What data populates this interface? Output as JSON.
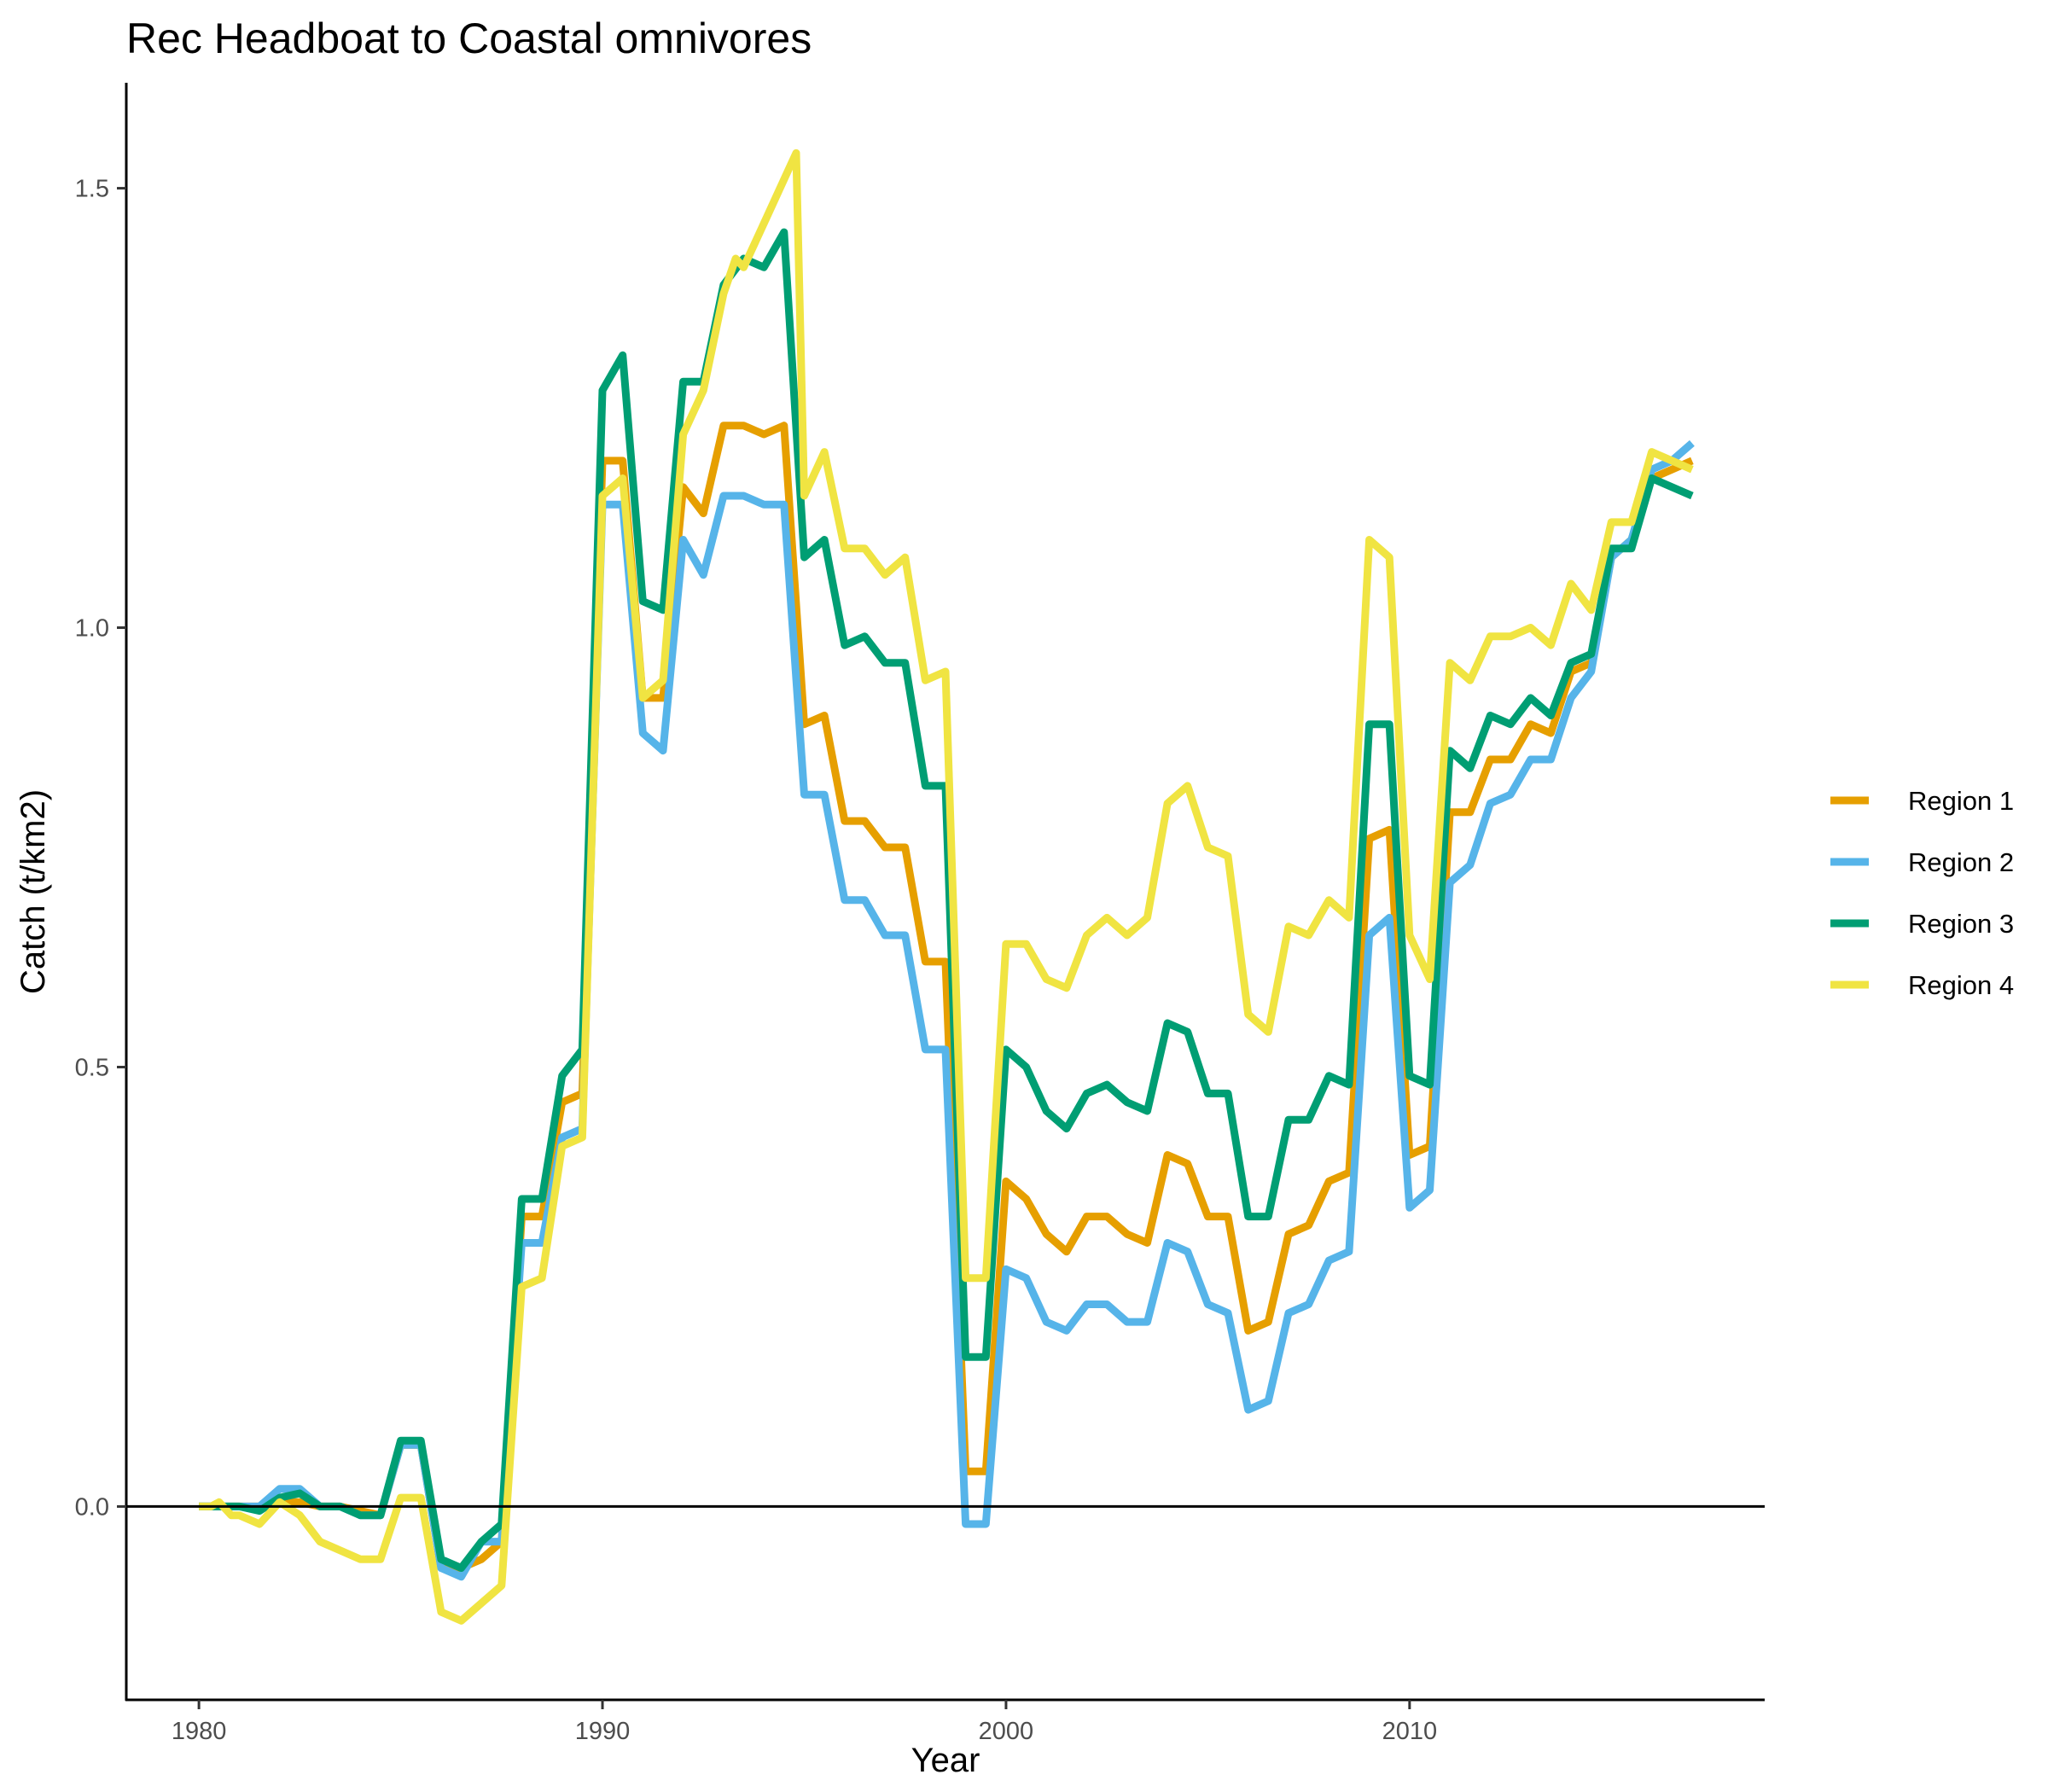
{
  "chart_data": {
    "type": "line",
    "title": "Rec Headboat to Coastal omnivores",
    "xlabel": "Year",
    "ylabel": "Catch (t/km2)",
    "xlim": [
      1978.2,
      2018.8
    ],
    "ylim": [
      -0.22,
      1.62
    ],
    "xticks": [
      1980,
      1990,
      2000,
      2010
    ],
    "xtick_labels": [
      "1980",
      "1990",
      "2000",
      "2010"
    ],
    "yticks": [
      0.0,
      0.5,
      1.0,
      1.5
    ],
    "ytick_labels": [
      "0.0",
      "0.5",
      "1.0",
      "1.5"
    ],
    "hline_y": 0,
    "grid": false,
    "legend_position": "right",
    "series": [
      {
        "name": "Region 1",
        "color": "#E69F00",
        "points": [
          [
            1980,
            0.0
          ],
          [
            1980.5,
            0.0
          ],
          [
            1981,
            0.0
          ],
          [
            1981.5,
            0.0
          ],
          [
            1982,
            0.005
          ],
          [
            1982.5,
            0.005
          ],
          [
            1983,
            0.0
          ],
          [
            1983.5,
            0.0
          ],
          [
            1984,
            -0.005
          ],
          [
            1984.5,
            -0.01
          ],
          [
            1985,
            0.07
          ],
          [
            1985.5,
            0.07
          ],
          [
            1986,
            -0.07
          ],
          [
            1986.5,
            -0.07
          ],
          [
            1987,
            -0.06
          ],
          [
            1987.5,
            -0.04
          ],
          [
            1988,
            0.33
          ],
          [
            1988.5,
            0.33
          ],
          [
            1989,
            0.46
          ],
          [
            1989.5,
            0.47
          ],
          [
            1990,
            1.19
          ],
          [
            1990.5,
            1.19
          ],
          [
            1991,
            0.92
          ],
          [
            1991.5,
            0.92
          ],
          [
            1992,
            1.16
          ],
          [
            1992.5,
            1.13
          ],
          [
            1993,
            1.23
          ],
          [
            1993.5,
            1.23
          ],
          [
            1994,
            1.22
          ],
          [
            1994.5,
            1.23
          ],
          [
            1995,
            0.89
          ],
          [
            1995.5,
            0.9
          ],
          [
            1996,
            0.78
          ],
          [
            1996.5,
            0.78
          ],
          [
            1997,
            0.75
          ],
          [
            1997.5,
            0.75
          ],
          [
            1998,
            0.62
          ],
          [
            1998.5,
            0.62
          ],
          [
            1999,
            0.04
          ],
          [
            1999.5,
            0.04
          ],
          [
            2000,
            0.37
          ],
          [
            2000.5,
            0.35
          ],
          [
            2001,
            0.31
          ],
          [
            2001.5,
            0.29
          ],
          [
            2002,
            0.33
          ],
          [
            2002.5,
            0.33
          ],
          [
            2003,
            0.31
          ],
          [
            2003.5,
            0.3
          ],
          [
            2004,
            0.4
          ],
          [
            2004.5,
            0.39
          ],
          [
            2005,
            0.33
          ],
          [
            2005.5,
            0.33
          ],
          [
            2006,
            0.2
          ],
          [
            2006.5,
            0.21
          ],
          [
            2007,
            0.31
          ],
          [
            2007.5,
            0.32
          ],
          [
            2008,
            0.37
          ],
          [
            2008.5,
            0.38
          ],
          [
            2009,
            0.76
          ],
          [
            2009.5,
            0.77
          ],
          [
            2010,
            0.4
          ],
          [
            2010.5,
            0.41
          ],
          [
            2011,
            0.79
          ],
          [
            2011.5,
            0.79
          ],
          [
            2012,
            0.85
          ],
          [
            2012.5,
            0.85
          ],
          [
            2013,
            0.89
          ],
          [
            2013.5,
            0.88
          ],
          [
            2014,
            0.95
          ],
          [
            2014.5,
            0.96
          ],
          [
            2015,
            1.08
          ],
          [
            2015.5,
            1.1
          ],
          [
            2016,
            1.17
          ],
          [
            2016.5,
            1.18
          ],
          [
            2017,
            1.19
          ]
        ]
      },
      {
        "name": "Region 2",
        "color": "#56B4E9",
        "points": [
          [
            1980,
            0.0
          ],
          [
            1980.5,
            0.0
          ],
          [
            1981,
            0.0
          ],
          [
            1981.5,
            0.0
          ],
          [
            1982,
            0.02
          ],
          [
            1982.5,
            0.02
          ],
          [
            1983,
            0.0
          ],
          [
            1983.5,
            0.0
          ],
          [
            1984,
            -0.01
          ],
          [
            1984.5,
            -0.01
          ],
          [
            1985,
            0.07
          ],
          [
            1985.5,
            0.07
          ],
          [
            1986,
            -0.07
          ],
          [
            1986.5,
            -0.08
          ],
          [
            1987,
            -0.04
          ],
          [
            1987.5,
            -0.04
          ],
          [
            1988,
            0.3
          ],
          [
            1988.5,
            0.3
          ],
          [
            1989,
            0.42
          ],
          [
            1989.5,
            0.43
          ],
          [
            1990,
            1.14
          ],
          [
            1990.5,
            1.14
          ],
          [
            1991,
            0.88
          ],
          [
            1991.5,
            0.86
          ],
          [
            1992,
            1.1
          ],
          [
            1992.5,
            1.06
          ],
          [
            1993,
            1.15
          ],
          [
            1993.5,
            1.15
          ],
          [
            1994,
            1.14
          ],
          [
            1994.5,
            1.14
          ],
          [
            1995,
            0.81
          ],
          [
            1995.5,
            0.81
          ],
          [
            1996,
            0.69
          ],
          [
            1996.5,
            0.69
          ],
          [
            1997,
            0.65
          ],
          [
            1997.5,
            0.65
          ],
          [
            1998,
            0.52
          ],
          [
            1998.5,
            0.52
          ],
          [
            1999,
            -0.02
          ],
          [
            1999.5,
            -0.02
          ],
          [
            2000,
            0.27
          ],
          [
            2000.5,
            0.26
          ],
          [
            2001,
            0.21
          ],
          [
            2001.5,
            0.2
          ],
          [
            2002,
            0.23
          ],
          [
            2002.5,
            0.23
          ],
          [
            2003,
            0.21
          ],
          [
            2003.5,
            0.21
          ],
          [
            2004,
            0.3
          ],
          [
            2004.5,
            0.29
          ],
          [
            2005,
            0.23
          ],
          [
            2005.5,
            0.22
          ],
          [
            2006,
            0.11
          ],
          [
            2006.5,
            0.12
          ],
          [
            2007,
            0.22
          ],
          [
            2007.5,
            0.23
          ],
          [
            2008,
            0.28
          ],
          [
            2008.5,
            0.29
          ],
          [
            2009,
            0.65
          ],
          [
            2009.5,
            0.67
          ],
          [
            2010,
            0.34
          ],
          [
            2010.5,
            0.36
          ],
          [
            2011,
            0.71
          ],
          [
            2011.5,
            0.73
          ],
          [
            2012,
            0.8
          ],
          [
            2012.5,
            0.81
          ],
          [
            2013,
            0.85
          ],
          [
            2013.5,
            0.85
          ],
          [
            2014,
            0.92
          ],
          [
            2014.5,
            0.95
          ],
          [
            2015,
            1.08
          ],
          [
            2015.5,
            1.1
          ],
          [
            2016,
            1.18
          ],
          [
            2016.5,
            1.19
          ],
          [
            2017,
            1.21
          ]
        ]
      },
      {
        "name": "Region 3",
        "color": "#009E73",
        "points": [
          [
            1980,
            0.0
          ],
          [
            1980.5,
            0.0
          ],
          [
            1981,
            0.0
          ],
          [
            1981.5,
            -0.005
          ],
          [
            1982,
            0.01
          ],
          [
            1982.5,
            0.015
          ],
          [
            1983,
            0.0
          ],
          [
            1983.5,
            0.0
          ],
          [
            1984,
            -0.01
          ],
          [
            1984.5,
            -0.01
          ],
          [
            1985,
            0.075
          ],
          [
            1985.5,
            0.075
          ],
          [
            1986,
            -0.06
          ],
          [
            1986.5,
            -0.07
          ],
          [
            1987,
            -0.04
          ],
          [
            1987.5,
            -0.02
          ],
          [
            1988,
            0.35
          ],
          [
            1988.5,
            0.35
          ],
          [
            1989,
            0.49
          ],
          [
            1989.5,
            0.52
          ],
          [
            1990,
            1.27
          ],
          [
            1990.5,
            1.31
          ],
          [
            1991,
            1.03
          ],
          [
            1991.5,
            1.02
          ],
          [
            1992,
            1.28
          ],
          [
            1992.5,
            1.28
          ],
          [
            1993,
            1.39
          ],
          [
            1993.5,
            1.42
          ],
          [
            1994,
            1.41
          ],
          [
            1994.5,
            1.45
          ],
          [
            1995,
            1.08
          ],
          [
            1995.5,
            1.1
          ],
          [
            1996,
            0.98
          ],
          [
            1996.5,
            0.99
          ],
          [
            1997,
            0.96
          ],
          [
            1997.5,
            0.96
          ],
          [
            1998,
            0.82
          ],
          [
            1998.5,
            0.82
          ],
          [
            1999,
            0.17
          ],
          [
            1999.5,
            0.17
          ],
          [
            2000,
            0.52
          ],
          [
            2000.5,
            0.5
          ],
          [
            2001,
            0.45
          ],
          [
            2001.5,
            0.43
          ],
          [
            2002,
            0.47
          ],
          [
            2002.5,
            0.48
          ],
          [
            2003,
            0.46
          ],
          [
            2003.5,
            0.45
          ],
          [
            2004,
            0.55
          ],
          [
            2004.5,
            0.54
          ],
          [
            2005,
            0.47
          ],
          [
            2005.5,
            0.47
          ],
          [
            2006,
            0.33
          ],
          [
            2006.5,
            0.33
          ],
          [
            2007,
            0.44
          ],
          [
            2007.5,
            0.44
          ],
          [
            2008,
            0.49
          ],
          [
            2008.5,
            0.48
          ],
          [
            2009,
            0.89
          ],
          [
            2009.5,
            0.89
          ],
          [
            2010,
            0.49
          ],
          [
            2010.5,
            0.48
          ],
          [
            2011,
            0.86
          ],
          [
            2011.5,
            0.84
          ],
          [
            2012,
            0.9
          ],
          [
            2012.5,
            0.89
          ],
          [
            2013,
            0.92
          ],
          [
            2013.5,
            0.9
          ],
          [
            2014,
            0.96
          ],
          [
            2014.5,
            0.97
          ],
          [
            2015,
            1.09
          ],
          [
            2015.5,
            1.09
          ],
          [
            2016,
            1.17
          ],
          [
            2016.5,
            1.16
          ],
          [
            2017,
            1.15
          ]
        ]
      },
      {
        "name": "Region 4",
        "color": "#F0E442",
        "points": [
          [
            1980,
            0.0
          ],
          [
            1980.3,
            0.0
          ],
          [
            1980.5,
            0.005
          ],
          [
            1980.8,
            -0.01
          ],
          [
            1981,
            -0.01
          ],
          [
            1981.5,
            -0.02
          ],
          [
            1982,
            0.005
          ],
          [
            1982.5,
            -0.01
          ],
          [
            1983,
            -0.04
          ],
          [
            1983.5,
            -0.05
          ],
          [
            1984,
            -0.06
          ],
          [
            1984.5,
            -0.06
          ],
          [
            1985,
            0.01
          ],
          [
            1985.5,
            0.01
          ],
          [
            1986,
            -0.12
          ],
          [
            1986.5,
            -0.13
          ],
          [
            1987,
            -0.11
          ],
          [
            1987.5,
            -0.09
          ],
          [
            1988,
            0.25
          ],
          [
            1988.5,
            0.26
          ],
          [
            1989,
            0.41
          ],
          [
            1989.5,
            0.42
          ],
          [
            1990,
            1.15
          ],
          [
            1990.5,
            1.17
          ],
          [
            1991,
            0.92
          ],
          [
            1991.5,
            0.94
          ],
          [
            1992,
            1.22
          ],
          [
            1992.5,
            1.27
          ],
          [
            1993,
            1.38
          ],
          [
            1993.3,
            1.42
          ],
          [
            1993.5,
            1.41
          ],
          [
            1994,
            1.46
          ],
          [
            1994.5,
            1.51
          ],
          [
            1994.8,
            1.54
          ],
          [
            1995,
            1.15
          ],
          [
            1995.5,
            1.2
          ],
          [
            1996,
            1.09
          ],
          [
            1996.5,
            1.09
          ],
          [
            1997,
            1.06
          ],
          [
            1997.5,
            1.08
          ],
          [
            1998,
            0.94
          ],
          [
            1998.5,
            0.95
          ],
          [
            1999,
            0.26
          ],
          [
            1999.5,
            0.26
          ],
          [
            2000,
            0.64
          ],
          [
            2000.5,
            0.64
          ],
          [
            2001,
            0.6
          ],
          [
            2001.5,
            0.59
          ],
          [
            2002,
            0.65
          ],
          [
            2002.5,
            0.67
          ],
          [
            2003,
            0.65
          ],
          [
            2003.5,
            0.67
          ],
          [
            2004,
            0.8
          ],
          [
            2004.5,
            0.82
          ],
          [
            2005,
            0.75
          ],
          [
            2005.5,
            0.74
          ],
          [
            2006,
            0.56
          ],
          [
            2006.5,
            0.54
          ],
          [
            2007,
            0.66
          ],
          [
            2007.5,
            0.65
          ],
          [
            2008,
            0.69
          ],
          [
            2008.5,
            0.67
          ],
          [
            2009,
            1.1
          ],
          [
            2009.5,
            1.08
          ],
          [
            2010,
            0.65
          ],
          [
            2010.5,
            0.6
          ],
          [
            2011,
            0.96
          ],
          [
            2011.5,
            0.94
          ],
          [
            2012,
            0.99
          ],
          [
            2012.5,
            0.99
          ],
          [
            2013,
            1.0
          ],
          [
            2013.5,
            0.98
          ],
          [
            2014,
            1.05
          ],
          [
            2014.5,
            1.02
          ],
          [
            2015,
            1.12
          ],
          [
            2015.5,
            1.12
          ],
          [
            2016,
            1.2
          ],
          [
            2016.5,
            1.19
          ],
          [
            2017,
            1.18
          ]
        ]
      }
    ]
  }
}
